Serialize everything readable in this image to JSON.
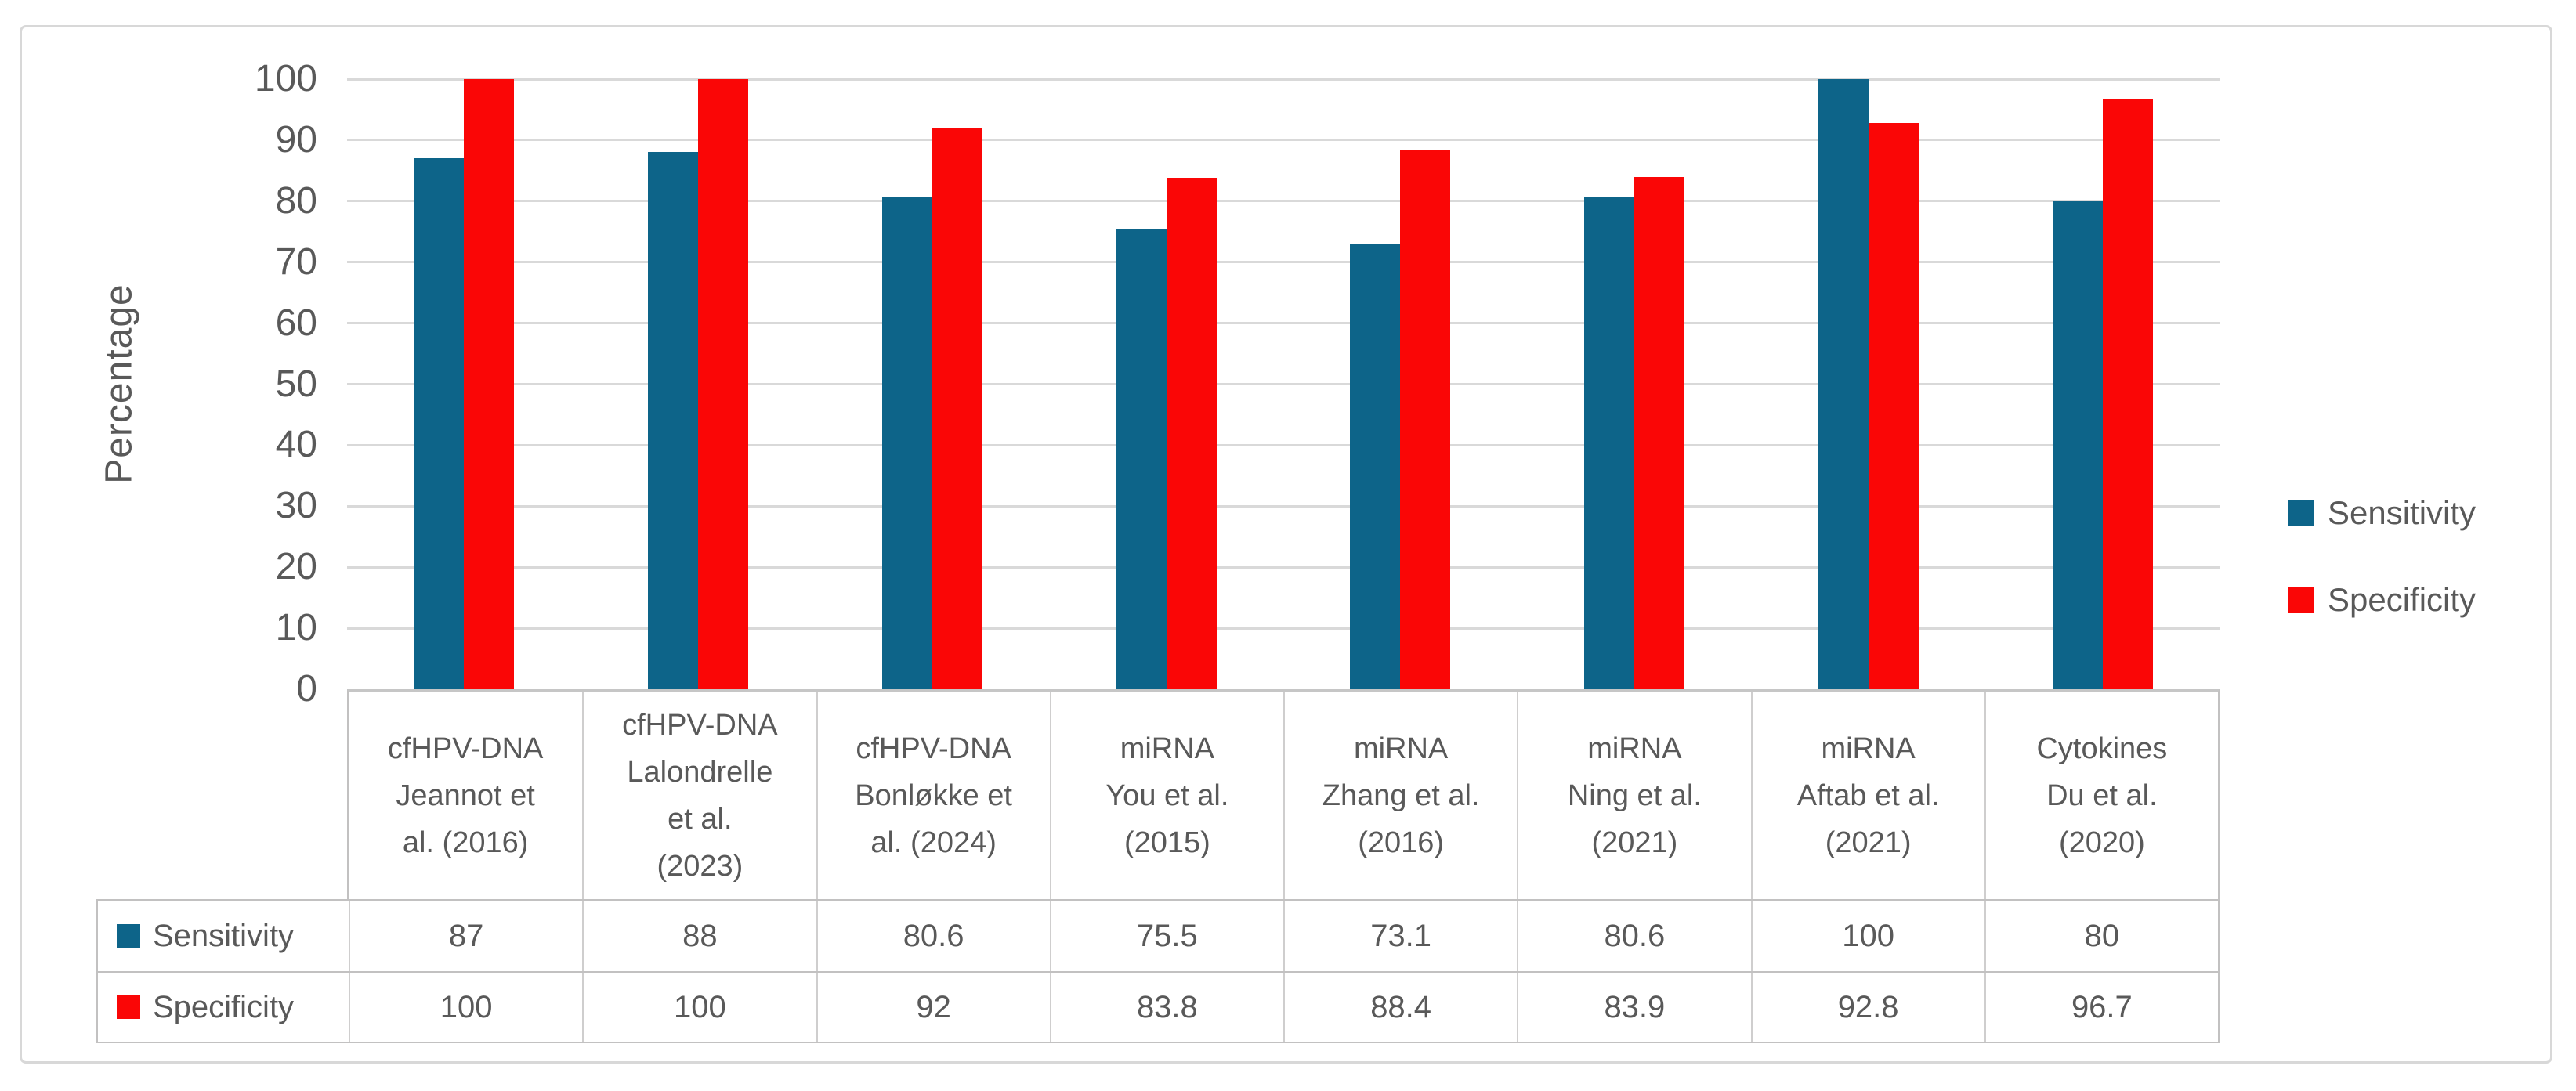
{
  "figure": {
    "kind": "clustered-bar-chart-with-data-table",
    "background": "#ffffff",
    "frame_border_color": "#d8d8d8"
  },
  "colors": {
    "sensitivity": "#0d6489",
    "specificity": "#fa0606",
    "gridline": "#d9d9d9",
    "table_border": "#c2c1c1",
    "text": "#595959"
  },
  "y_axis": {
    "title": "Percentage",
    "tick_labels": [
      "0",
      "10",
      "20",
      "30",
      "40",
      "50",
      "60",
      "70",
      "80",
      "90",
      "100"
    ]
  },
  "legend": {
    "position": "right",
    "items": [
      {
        "label": "Sensitivity",
        "color": "#0d6489"
      },
      {
        "label": "Specificity",
        "color": "#fa0606"
      }
    ]
  },
  "chart_data": {
    "type": "bar",
    "title": "",
    "xlabel": "",
    "ylabel": "Percentage",
    "ylim": [
      0,
      100
    ],
    "ytick_step": 10,
    "grid": true,
    "legend_position": "right",
    "has_data_table": true,
    "categories": [
      "cfHPV-DNA Jeannot et al. (2016)",
      "cfHPV-DNA Lalondrelle et al. (2023)",
      "cfHPV-DNA Bonløkke et al. (2024)",
      "miRNA You et al. (2015)",
      "miRNA Zhang et al. (2016)",
      "miRNA Ning et al. (2021)",
      "miRNA Aftab et al. (2021)",
      "Cytokines Du et al. (2020)"
    ],
    "categories_wrapped": [
      [
        "cfHPV-DNA",
        "Jeannot et",
        "al. (2016)"
      ],
      [
        "cfHPV-DNA",
        "Lalondrelle",
        "et al.",
        "(2023)"
      ],
      [
        "cfHPV-DNA",
        "Bonløkke et",
        "al. (2024)"
      ],
      [
        "miRNA",
        "You et al.",
        "(2015)"
      ],
      [
        "miRNA",
        "Zhang et al.",
        "(2016)"
      ],
      [
        "miRNA",
        "Ning et al.",
        "(2021)"
      ],
      [
        "miRNA",
        "Aftab et al.",
        "(2021)"
      ],
      [
        "Cytokines",
        "Du et al.",
        "(2020)"
      ]
    ],
    "series": [
      {
        "name": "Sensitivity",
        "color": "#0d6489",
        "values": [
          87,
          88,
          80.6,
          75.5,
          73.1,
          80.6,
          100,
          80
        ],
        "display_values": [
          "87",
          "88",
          "80.6",
          "75.5",
          "73.1",
          "80.6",
          "100",
          "80"
        ]
      },
      {
        "name": "Specificity",
        "color": "#fa0606",
        "values": [
          100,
          100,
          92,
          83.8,
          88.4,
          83.9,
          92.8,
          96.7
        ],
        "display_values": [
          "100",
          "100",
          "92",
          "83.8",
          "88.4",
          "83.9",
          "92.8",
          "96.7"
        ]
      }
    ]
  }
}
